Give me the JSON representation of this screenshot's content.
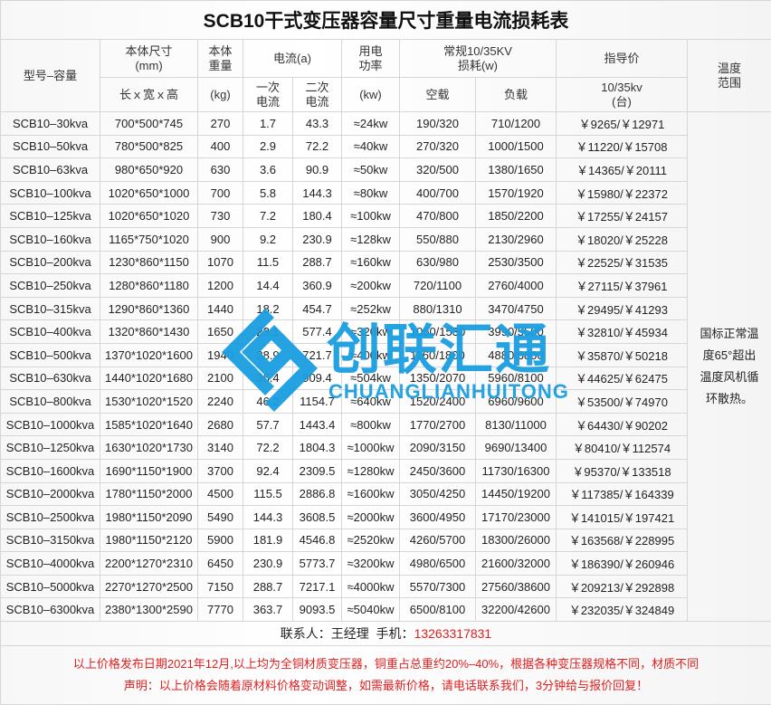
{
  "title": "SCB10干式变压器容量尺寸重量电流损耗表",
  "header": {
    "model": "型号–容量",
    "size": "本体尺寸\n(mm)",
    "size_sub": "长ｘ宽ｘ高",
    "weight": "本体\n重量",
    "weight_sub": "(kg)",
    "current": "电流(a)",
    "current_primary": "一次\n电流",
    "current_secondary": "二次\n电流",
    "power": "用电\n功率",
    "power_sub": "(kw)",
    "loss": "常规10/35KV\n损耗(w)",
    "loss_noload": "空载",
    "loss_load": "负载",
    "price": "指导价",
    "price_sub": "10/35kv\n(台)",
    "temp": "温度\n范围"
  },
  "temp_note": "国标正常温度65°超出温度风机循环散热。",
  "rows": [
    [
      "SCB10–30kva",
      "700*500*745",
      "270",
      "1.7",
      "43.3",
      "≈24kw",
      "190/320",
      "710/1200",
      "￥9265/￥12971"
    ],
    [
      "SCB10–50kva",
      "780*500*825",
      "400",
      "2.9",
      "72.2",
      "≈40kw",
      "270/320",
      "1000/1500",
      "￥11220/￥15708"
    ],
    [
      "SCB10–63kva",
      "980*650*920",
      "630",
      "3.6",
      "90.9",
      "≈50kw",
      "320/500",
      "1380/1650",
      "￥14365/￥20111"
    ],
    [
      "SCB10–100kva",
      "1020*650*1000",
      "700",
      "5.8",
      "144.3",
      "≈80kw",
      "400/700",
      "1570/1920",
      "￥15980/￥22372"
    ],
    [
      "SCB10–125kva",
      "1020*650*1020",
      "730",
      "7.2",
      "180.4",
      "≈100kw",
      "470/800",
      "1850/2200",
      "￥17255/￥24157"
    ],
    [
      "SCB10–160kva",
      "1165*750*1020",
      "900",
      "9.2",
      "230.9",
      "≈128kw",
      "550/880",
      "2130/2960",
      "￥18020/￥25228"
    ],
    [
      "SCB10–200kva",
      "1230*860*1150",
      "1070",
      "11.5",
      "288.7",
      "≈160kw",
      "630/980",
      "2530/3500",
      "￥22525/￥31535"
    ],
    [
      "SCB10–250kva",
      "1280*860*1180",
      "1200",
      "14.4",
      "360.9",
      "≈200kw",
      "720/1100",
      "2760/4000",
      "￥27115/￥37961"
    ],
    [
      "SCB10–315kva",
      "1290*860*1360",
      "1440",
      "18.2",
      "454.7",
      "≈252kw",
      "880/1310",
      "3470/4750",
      "￥29495/￥41293"
    ],
    [
      "SCB10–400kva",
      "1320*860*1430",
      "1650",
      "23.1",
      "577.4",
      "≈320kw",
      "1050/1530",
      "3990/5500",
      "￥32810/￥45934"
    ],
    [
      "SCB10–500kva",
      "1370*1020*1600",
      "1940",
      "28.9",
      "721.7",
      "≈400kw",
      "1160/1800",
      "4880/6800",
      "￥35870/￥50218"
    ],
    [
      "SCB10–630kva",
      "1440*1020*1680",
      "2100",
      "36.4",
      "909.4",
      "≈504kw",
      "1350/2070",
      "5960/8100",
      "￥44625/￥62475"
    ],
    [
      "SCB10–800kva",
      "1530*1020*1520",
      "2240",
      "46.2",
      "1154.7",
      "≈640kw",
      "1520/2400",
      "6960/9600",
      "￥53500/￥74970"
    ],
    [
      "SCB10–1000kva",
      "1585*1020*1640",
      "2680",
      "57.7",
      "1443.4",
      "≈800kw",
      "1770/2700",
      "8130/11000",
      "￥64430/￥90202"
    ],
    [
      "SCB10–1250kva",
      "1630*1020*1730",
      "3140",
      "72.2",
      "1804.3",
      "≈1000kw",
      "2090/3150",
      "9690/13400",
      "￥80410/￥112574"
    ],
    [
      "SCB10–1600kva",
      "1690*1150*1900",
      "3700",
      "92.4",
      "2309.5",
      "≈1280kw",
      "2450/3600",
      "11730/16300",
      "￥95370/￥133518"
    ],
    [
      "SCB10–2000kva",
      "1780*1150*2000",
      "4500",
      "115.5",
      "2886.8",
      "≈1600kw",
      "3050/4250",
      "14450/19200",
      "￥117385/￥164339"
    ],
    [
      "SCB10–2500kva",
      "1980*1150*2090",
      "5490",
      "144.3",
      "3608.5",
      "≈2000kw",
      "3600/4950",
      "17170/23000",
      "￥141015/￥197421"
    ],
    [
      "SCB10–3150kva",
      "1980*1150*2120",
      "5900",
      "181.9",
      "4546.8",
      "≈2520kw",
      "4260/5700",
      "18300/26000",
      "￥163568/￥228995"
    ],
    [
      "SCB10–4000kva",
      "2200*1270*2310",
      "6450",
      "230.9",
      "5773.7",
      "≈3200kw",
      "4980/6500",
      "21600/32000",
      "￥186390/￥260946"
    ],
    [
      "SCB10–5000kva",
      "2270*1270*2500",
      "7150",
      "288.7",
      "7217.1",
      "≈4000kw",
      "5570/7300",
      "27560/38600",
      "￥209213/￥292898"
    ],
    [
      "SCB10–6300kva",
      "2380*1300*2590",
      "7770",
      "363.7",
      "9093.5",
      "≈5040kw",
      "6500/8100",
      "32200/42600",
      "￥232035/￥324849"
    ]
  ],
  "contact": {
    "label": "联系人：王经理  手机：",
    "phone": "13263317831"
  },
  "notes": [
    "以上价格发布日期2021年12月,以上均为全铜材质变压器，铜重占总重约20%–40%，根据各种变压器规格不同，材质不同",
    "声明：以上价格会随着原材料价格变动调整，如需最新价格，请电话联系我们，3分钟给与报价回复！"
  ],
  "watermark": {
    "text": "创联汇通",
    "sub": "CHUANGLIANHUITONG",
    "color": "#1a9ee0"
  },
  "colors": {
    "model_text": "#e02020",
    "notes_text": "#e02020"
  }
}
